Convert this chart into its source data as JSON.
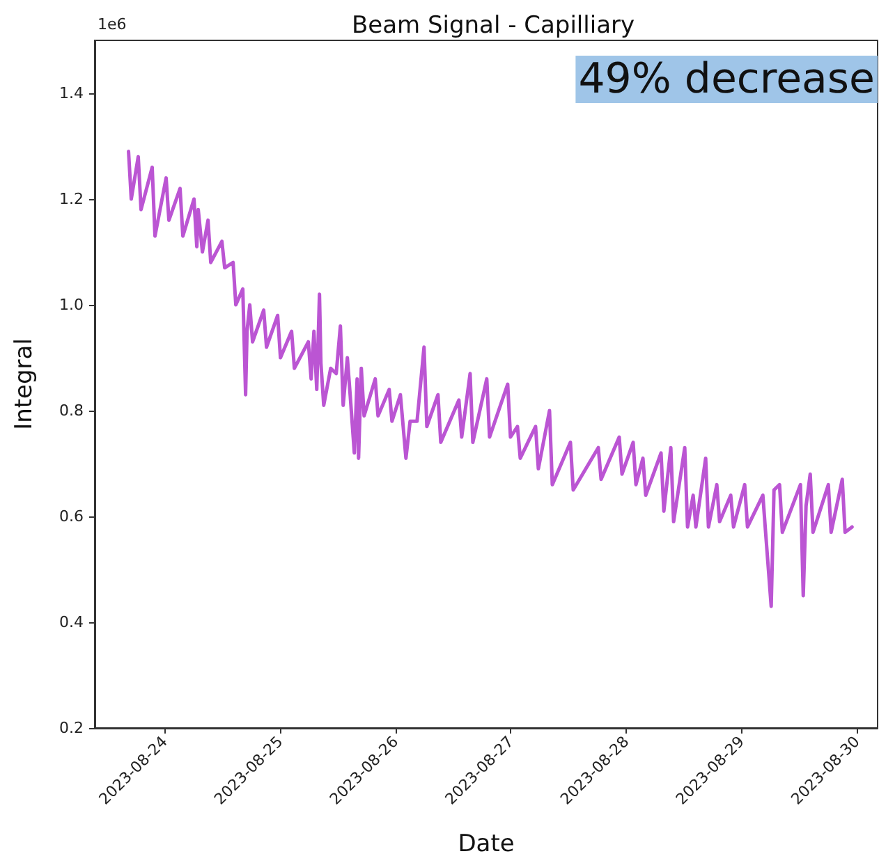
{
  "chart_data": {
    "type": "line",
    "title": "Beam Signal - Capilliary",
    "xlabel": "Date",
    "ylabel": "Integral",
    "annotations": [
      "49% decrease",
      "1e6"
    ],
    "xlim": [
      "2023-08-23T09:26",
      "2023-08-30T04:17"
    ],
    "xticks": [
      "2023-08-24",
      "2023-08-25",
      "2023-08-26",
      "2023-08-27",
      "2023-08-28",
      "2023-08-29",
      "2023-08-30"
    ],
    "ylim": [
      0.2,
      1.5
    ],
    "yticks": [
      0.2,
      0.4,
      0.6,
      0.8,
      {
        "value": 1,
        "label": "1.0"
      },
      1.2,
      1.4
    ],
    "grid": false,
    "marker": "none",
    "line_style": "solid",
    "series": [
      {
        "color": "#bb55d3",
        "x": [
          "2023-08-23T16:28",
          "2023-08-23T17:02",
          "2023-08-23T18:29",
          "2023-08-23T19:04",
          "2023-08-23T21:23",
          "2023-08-23T21:58",
          "2023-08-24T00:17",
          "2023-08-24T00:52",
          "2023-08-24T03:11",
          "2023-08-24T03:46",
          "2023-08-24T06:05",
          "2023-08-24T06:40",
          "2023-08-24T06:58",
          "2023-08-24T07:50",
          "2023-08-24T09:00",
          "2023-08-24T09:34",
          "2023-08-24T11:53",
          "2023-08-24T12:28",
          "2023-08-24T14:13",
          "2023-08-24T14:47",
          "2023-08-24T16:14",
          "2023-08-24T16:49",
          "2023-08-24T17:07",
          "2023-08-24T17:41",
          "2023-08-24T18:16",
          "2023-08-24T20:35",
          "2023-08-24T21:10",
          "2023-08-24T23:29",
          "2023-08-25T00:04",
          "2023-08-25T02:23",
          "2023-08-25T02:58",
          "2023-08-25T05:52",
          "2023-08-25T06:27",
          "2023-08-25T07:02",
          "2023-08-25T07:37",
          "2023-08-25T08:11",
          "2023-08-25T08:29",
          "2023-08-25T09:04",
          "2023-08-25T10:31",
          "2023-08-25T11:40",
          "2023-08-25T12:32",
          "2023-08-25T13:07",
          "2023-08-25T13:59",
          "2023-08-25T14:34",
          "2023-08-25T15:26",
          "2023-08-25T16:01",
          "2023-08-25T16:19",
          "2023-08-25T16:53",
          "2023-08-25T17:28",
          "2023-08-25T19:47",
          "2023-08-25T20:22",
          "2023-08-25T22:41",
          "2023-08-25T23:16",
          "2023-08-26T01:01",
          "2023-08-26T02:10",
          "2023-08-26T03:02",
          "2023-08-26T04:29",
          "2023-08-26T05:56",
          "2023-08-26T06:31",
          "2023-08-26T08:50",
          "2023-08-26T09:25",
          "2023-08-26T13:11",
          "2023-08-26T13:46",
          "2023-08-26T15:31",
          "2023-08-26T16:05",
          "2023-08-26T18:59",
          "2023-08-26T19:34",
          "2023-08-26T23:20",
          "2023-08-26T23:55",
          "2023-08-27T01:22",
          "2023-08-27T01:57",
          "2023-08-27T05:08",
          "2023-08-27T05:43",
          "2023-08-27T08:02",
          "2023-08-27T08:37",
          "2023-08-27T12:23",
          "2023-08-27T12:58",
          "2023-08-27T18:11",
          "2023-08-27T18:46",
          "2023-08-27T22:32",
          "2023-08-27T23:07",
          "2023-08-28T01:26",
          "2023-08-28T02:01",
          "2023-08-28T03:28",
          "2023-08-28T04:03",
          "2023-08-28T07:14",
          "2023-08-28T07:49",
          "2023-08-28T09:16",
          "2023-08-28T09:51",
          "2023-08-28T12:10",
          "2023-08-28T12:45",
          "2023-08-28T13:55",
          "2023-08-28T14:29",
          "2023-08-28T16:31",
          "2023-08-28T17:06",
          "2023-08-28T18:50",
          "2023-08-28T19:25",
          "2023-08-28T21:44",
          "2023-08-28T22:19",
          "2023-08-29T00:38",
          "2023-08-29T01:13",
          "2023-08-29T04:25",
          "2023-08-29T04:59",
          "2023-08-29T06:09",
          "2023-08-29T06:44",
          "2023-08-29T07:53",
          "2023-08-29T08:28",
          "2023-08-29T12:14",
          "2023-08-29T12:49",
          "2023-08-29T13:24",
          "2023-08-29T14:16",
          "2023-08-29T14:51",
          "2023-08-29T18:02",
          "2023-08-29T18:37",
          "2023-08-29T20:56",
          "2023-08-29T21:31",
          "2023-08-29T22:58"
        ],
        "values": [
          1.29,
          1.2,
          1.28,
          1.18,
          1.26,
          1.13,
          1.24,
          1.16,
          1.22,
          1.13,
          1.2,
          1.11,
          1.18,
          1.1,
          1.16,
          1.08,
          1.12,
          1.07,
          1.08,
          1.0,
          1.03,
          0.83,
          0.95,
          1.0,
          0.93,
          0.99,
          0.92,
          0.98,
          0.9,
          0.95,
          0.88,
          0.93,
          0.86,
          0.95,
          0.84,
          1.02,
          0.89,
          0.81,
          0.88,
          0.87,
          0.96,
          0.81,
          0.9,
          0.83,
          0.72,
          0.86,
          0.71,
          0.88,
          0.79,
          0.86,
          0.79,
          0.84,
          0.78,
          0.83,
          0.71,
          0.78,
          0.78,
          0.92,
          0.77,
          0.83,
          0.74,
          0.82,
          0.75,
          0.87,
          0.74,
          0.86,
          0.75,
          0.85,
          0.75,
          0.77,
          0.71,
          0.77,
          0.69,
          0.8,
          0.66,
          0.74,
          0.65,
          0.73,
          0.67,
          0.75,
          0.68,
          0.74,
          0.66,
          0.71,
          0.64,
          0.72,
          0.61,
          0.73,
          0.59,
          0.73,
          0.58,
          0.64,
          0.58,
          0.71,
          0.58,
          0.66,
          0.59,
          0.64,
          0.58,
          0.66,
          0.58,
          0.64,
          0.57,
          0.43,
          0.65,
          0.66,
          0.57,
          0.66,
          0.45,
          0.62,
          0.68,
          0.57,
          0.66,
          0.57,
          0.67,
          0.57,
          0.58
        ]
      }
    ]
  }
}
